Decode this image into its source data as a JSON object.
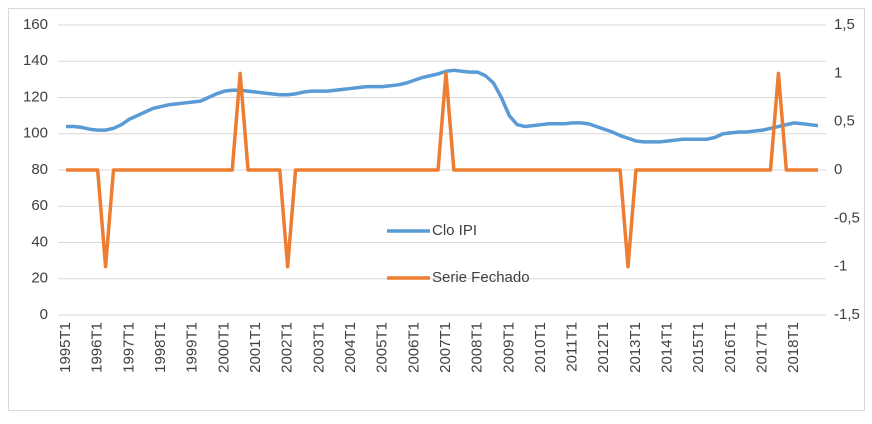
{
  "chart_data": {
    "type": "line",
    "categories": [
      "1995T1",
      null,
      null,
      null,
      "1996T1",
      null,
      null,
      null,
      "1997T1",
      null,
      null,
      null,
      "1998T1",
      null,
      null,
      null,
      "1999T1",
      null,
      null,
      null,
      "2000T1",
      null,
      null,
      null,
      "2001T1",
      null,
      null,
      null,
      "2002T1",
      null,
      null,
      null,
      "2003T1",
      null,
      null,
      null,
      "2004T1",
      null,
      null,
      null,
      "2005T1",
      null,
      null,
      null,
      "2006T1",
      null,
      null,
      null,
      "2007T1",
      null,
      null,
      null,
      "2008T1",
      null,
      null,
      null,
      "2009T1",
      null,
      null,
      null,
      "2010T1",
      null,
      null,
      null,
      "2011T1",
      null,
      null,
      null,
      "2012T1",
      null,
      null,
      null,
      "2013T1",
      null,
      null,
      null,
      "2014T1",
      null,
      null,
      null,
      "2015T1",
      null,
      null,
      null,
      "2016T1",
      null,
      null,
      null,
      "2017T1",
      null,
      null,
      null,
      "2018T1",
      null,
      null,
      null
    ],
    "series": [
      {
        "name": "Clo IPI",
        "color": "#5b9bd5",
        "values": [
          104,
          104,
          103.5,
          102.5,
          102,
          102,
          103,
          105,
          108,
          110,
          112,
          114,
          115,
          116,
          116.5,
          117,
          117.5,
          118,
          120,
          122,
          123.5,
          124,
          124,
          123.5,
          123,
          122.5,
          122,
          121.5,
          121.5,
          122,
          123,
          123.5,
          123.5,
          123.5,
          124,
          124.5,
          125,
          125.5,
          126,
          126,
          126,
          126.5,
          127,
          128,
          129.5,
          131,
          132,
          133,
          134.5,
          135,
          134.5,
          134,
          134,
          132,
          128,
          120,
          110,
          105,
          104,
          104.5,
          105,
          105.5,
          105.5,
          105.5,
          106,
          106,
          105.5,
          104,
          102.5,
          101,
          99,
          97.5,
          96,
          95.5,
          95.5,
          95.5,
          96,
          96.5,
          97,
          97,
          97,
          97,
          98,
          100,
          100.5,
          101,
          101,
          101.5,
          102,
          103,
          104,
          105,
          106,
          105.5,
          105,
          104.5
        ]
      },
      {
        "name": "Serie Fechado",
        "color": "#ed7d31",
        "axis": "y2",
        "values": [
          0,
          0,
          0,
          0,
          0,
          -1,
          0,
          0,
          0,
          0,
          0,
          0,
          0,
          0,
          0,
          0,
          0,
          0,
          0,
          0,
          0,
          0,
          1,
          0,
          0,
          0,
          0,
          0,
          -1,
          0,
          0,
          0,
          0,
          0,
          0,
          0,
          0,
          0,
          0,
          0,
          0,
          0,
          0,
          0,
          0,
          0,
          0,
          0,
          1,
          0,
          0,
          0,
          0,
          0,
          0,
          0,
          0,
          0,
          0,
          0,
          0,
          0,
          0,
          0,
          0,
          0,
          0,
          0,
          0,
          0,
          0,
          -1,
          0,
          0,
          0,
          0,
          0,
          0,
          0,
          0,
          0,
          0,
          0,
          0,
          0,
          0,
          0,
          0,
          0,
          0,
          1,
          0,
          0,
          0,
          0,
          0
        ]
      }
    ],
    "ylim": [
      0,
      160
    ],
    "yticks": [
      0,
      20,
      40,
      60,
      80,
      100,
      120,
      140,
      160
    ],
    "y2lim": [
      -1.5,
      1.5
    ],
    "y2ticks": [
      {
        "value": -1.5,
        "label": "-1,5"
      },
      -1,
      {
        "value": -0.5,
        "label": "-0,5"
      },
      0,
      {
        "value": 0.5,
        "label": "0,5"
      },
      1,
      {
        "value": 1.5,
        "label": "1,5"
      }
    ],
    "grid": true
  }
}
